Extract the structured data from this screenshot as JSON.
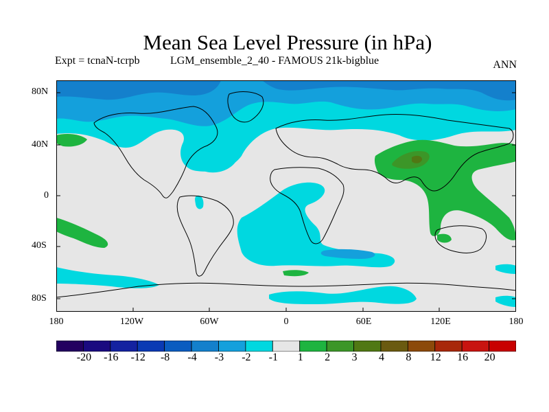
{
  "title": "Mean Sea Level Pressure (in hPa)",
  "subtitle_left": "Expt = tcnaN-tcrpb",
  "subtitle_mid": "LGM_ensemble_2_40 - FAMOUS 21k-bigblue",
  "subtitle_right": "ANN",
  "y_labels": [
    "80N",
    "40N",
    "0",
    "40S",
    "80S"
  ],
  "x_labels": [
    "180",
    "120W",
    "60W",
    "0",
    "60E",
    "120E",
    "180"
  ],
  "colorbar": {
    "colors": [
      "#230060",
      "#1a0a80",
      "#1422a0",
      "#0a3ab4",
      "#0a5cc0",
      "#1480cc",
      "#14a0dc",
      "#00d8e0",
      "#e6e6e6",
      "#1eb440",
      "#3c9628",
      "#507814",
      "#6a5a10",
      "#8c4a0a",
      "#a8280a",
      "#c81410",
      "#c80000"
    ],
    "labels": [
      "-20",
      "-16",
      "-12",
      "-8",
      "-4",
      "-3",
      "-2",
      "-1",
      "1",
      "2",
      "3",
      "4",
      "8",
      "12",
      "16",
      "20"
    ]
  }
}
